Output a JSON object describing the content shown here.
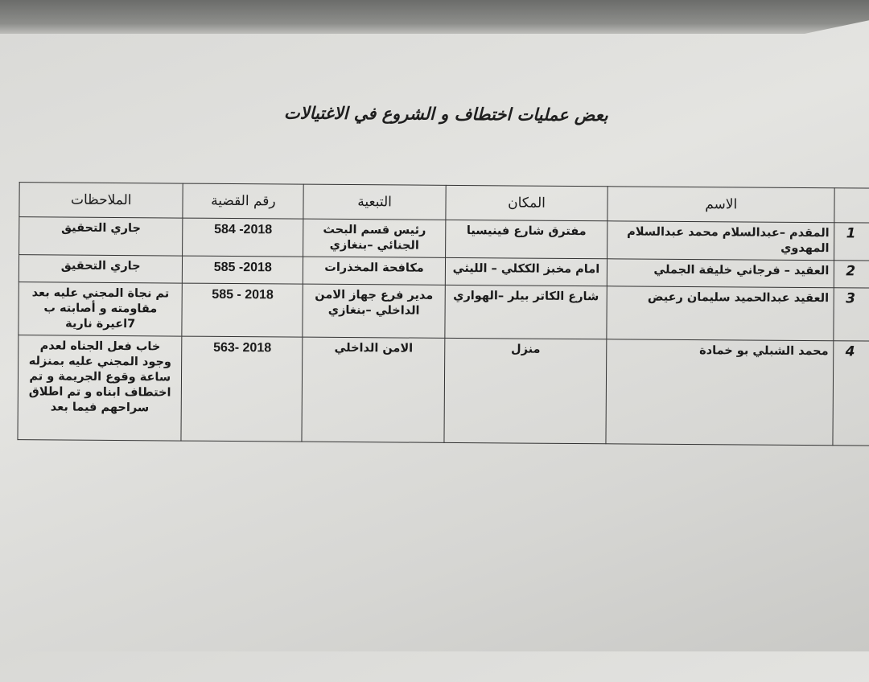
{
  "title": "بعض عمليات اختطاف و الشروع في الاغتيالات",
  "table": {
    "headers": {
      "number": "",
      "name": "الاسم",
      "place": "المكان",
      "affiliation": "التبعية",
      "case_number": "رقم القضية",
      "notes": "الملاحظات"
    },
    "rows": [
      {
        "number": "1",
        "name": "المقدم –عبدالسلام محمد عبدالسلام المهدوي",
        "place": "مفترق شارع فينيسيا",
        "affiliation": "رئيس قسم البحث الجنائي –بنغازي",
        "case_number": "584 -2018",
        "notes": "جاري التحقيق"
      },
      {
        "number": "2",
        "name": "العقيد – فرجاني خليفة الجملي",
        "place": "امام مخبز الككلي – الليثي",
        "affiliation": "مكافحة المخذرات",
        "case_number": "585 -2018",
        "notes": "جاري التحقيق"
      },
      {
        "number": "3",
        "name": "العقيد عبدالحميد سليمان رعيض",
        "place": "شارع الكاتر بيلر –الهواري",
        "affiliation": "مدير فرع جهاز الامن الداخلي –بنغازي",
        "case_number": "585 - 2018",
        "notes": "تم نجاة المجني عليه بعد مقاومته و أصابته ب 7اعيرة نارية"
      },
      {
        "number": "4",
        "name": "محمد الشبلي بو خمادة",
        "place": "منزل",
        "affiliation": "الامن الداخلي",
        "case_number": "563- 2018",
        "notes": "خاب فعل الجناه لعدم وجود المجني عليه بمنزله ساعة وقوع الجريمة و تم اختطاف ابناه و تم اطلاق سراحهم فيما بعد"
      }
    ]
  }
}
